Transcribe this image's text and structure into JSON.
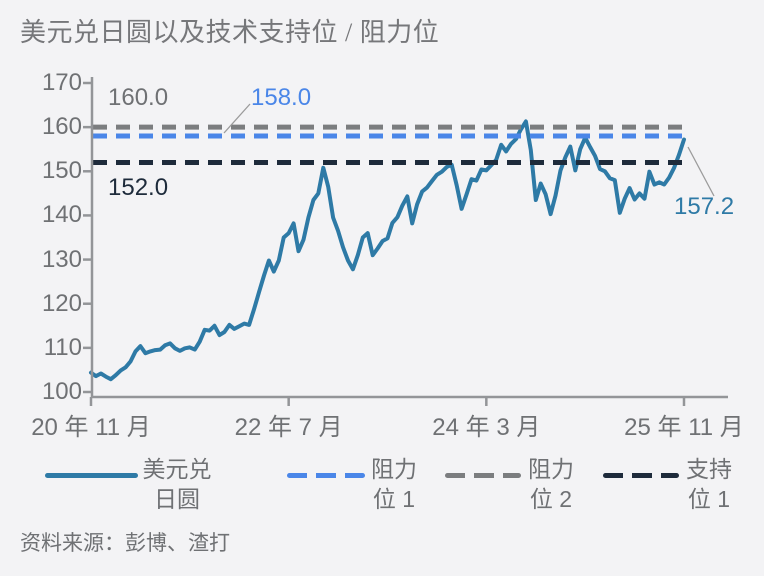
{
  "title": "美元兑日圆以及技术支持位 / 阻力位",
  "source": "资料来源：彭博、渣打",
  "colors": {
    "background": "#f3f3f5",
    "series_line": "#2e7aa6",
    "resistance1": "#4a86e8",
    "resistance2": "#7b7d7f",
    "support1": "#1e2b3b",
    "axis": "#939598",
    "tick_text": "#6f7174",
    "callout": "#9b9b9b"
  },
  "levels": {
    "resistance2": {
      "label": "160.0",
      "value": 160.0
    },
    "resistance1": {
      "label": "158.0",
      "value": 158.0
    },
    "support1": {
      "label": "152.0",
      "value": 152.0
    }
  },
  "last_value": {
    "label": "157.2",
    "value": 157.2
  },
  "legend": {
    "items": [
      {
        "name": "美元兑日圆",
        "line1": "美元兑",
        "line2": "日圆",
        "style": "solid",
        "color": "#2e7aa6"
      },
      {
        "name": "阻力位 1",
        "line1": "阻力",
        "line2": "位 1",
        "style": "dashed",
        "color": "#4a86e8"
      },
      {
        "name": "阻力位 2",
        "line1": "阻力",
        "line2": "位 2",
        "style": "dashed",
        "color": "#7b7d7f"
      },
      {
        "name": "支持位 1",
        "line1": "支持",
        "line2": "位 1",
        "style": "dashed",
        "color": "#1e2b3b"
      }
    ]
  },
  "chart_data": {
    "type": "line",
    "title": "美元兑日圆以及技术支持位 / 阻力位",
    "xlabel": "",
    "ylabel": "",
    "ylim": [
      100,
      170
    ],
    "y_ticks": [
      170,
      160,
      150,
      140,
      130,
      120,
      110,
      100
    ],
    "x_ticks": [
      {
        "label": "20 年 11 月",
        "month_offset": 0
      },
      {
        "label": "22 年 7 月",
        "month_offset": 20
      },
      {
        "label": "24 年 3 月",
        "month_offset": 40
      },
      {
        "label": "25 年 11 月",
        "month_offset": 60
      }
    ],
    "x_range": [
      "2020-11",
      "2025-11"
    ],
    "sampling": "semi-monthly",
    "grid": false,
    "legend_position": "bottom",
    "series": [
      {
        "name": "美元兑日圆",
        "type": "line",
        "color": "#2e7aa6",
        "values": [
          104.4,
          103.6,
          104.2,
          103.5,
          102.9,
          103.8,
          104.9,
          105.6,
          106.9,
          109.2,
          110.4,
          108.8,
          109.2,
          109.5,
          109.6,
          110.6,
          111.0,
          109.9,
          109.3,
          109.9,
          110.1,
          109.6,
          111.4,
          114.1,
          113.9,
          115.0,
          112.9,
          113.6,
          115.2,
          114.3,
          114.9,
          115.5,
          115.2,
          118.8,
          122.6,
          126.4,
          129.8,
          127.3,
          129.8,
          135.0,
          136.0,
          138.2,
          131.9,
          134.5,
          139.5,
          143.5,
          145.0,
          150.8,
          146.5,
          139.5,
          136.5,
          132.8,
          129.8,
          127.8,
          131.0,
          135.0,
          136.0,
          131.0,
          132.5,
          134.2,
          134.8,
          138.3,
          139.6,
          142.2,
          144.3,
          138.2,
          142.5,
          145.4,
          146.3,
          147.8,
          149.2,
          149.9,
          151.0,
          151.5,
          146.8,
          141.5,
          144.8,
          148.2,
          147.9,
          150.4,
          150.2,
          151.4,
          152.6,
          156.0,
          154.5,
          156.2,
          157.3,
          159.5,
          161.3,
          154.8,
          143.5,
          147.2,
          144.8,
          140.3,
          144.5,
          150.2,
          153.2,
          155.6,
          150.2,
          155.0,
          157.6,
          155.5,
          153.5,
          150.5,
          150.0,
          148.4,
          148.0,
          140.6,
          143.8,
          146.2,
          143.6,
          145.0,
          143.8,
          149.9,
          147.0,
          147.5,
          147.0,
          148.6,
          150.8,
          153.8,
          157.2
        ]
      },
      {
        "name": "阻力位 1",
        "type": "hline",
        "value": 158.0,
        "color": "#4a86e8",
        "dash": true
      },
      {
        "name": "阻力位 2",
        "type": "hline",
        "value": 160.0,
        "color": "#7b7d7f",
        "dash": true
      },
      {
        "name": "支持位 1",
        "type": "hline",
        "value": 152.0,
        "color": "#1e2b3b",
        "dash": true
      }
    ],
    "annotations": [
      {
        "text": "160.0",
        "refers_to": "阻力位 2"
      },
      {
        "text": "158.0",
        "refers_to": "阻力位 1"
      },
      {
        "text": "152.0",
        "refers_to": "支持位 1"
      },
      {
        "text": "157.2",
        "refers_to": "美元兑日圆 最新值"
      }
    ]
  }
}
